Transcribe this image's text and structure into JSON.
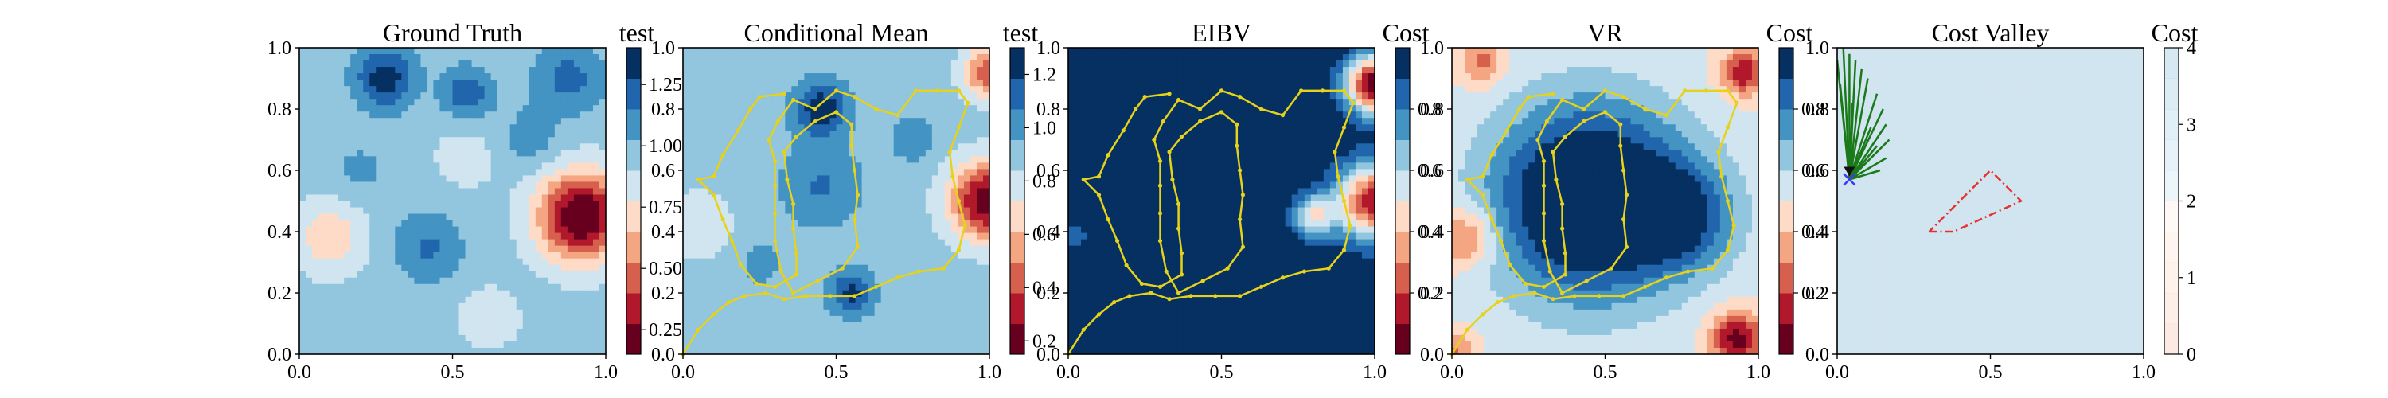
{
  "chart_data": [
    {
      "type": "heatmap",
      "title": "Ground Truth",
      "colorbar_label": "test",
      "xlim": [
        0,
        1
      ],
      "ylim": [
        0,
        1
      ],
      "x_ticks": [
        "0.0",
        "0.5",
        "1.0"
      ],
      "y_ticks": [
        "0.0",
        "0.2",
        "0.4",
        "0.6",
        "0.8",
        "1.0"
      ],
      "colorbar_range": [
        0.15,
        1.4
      ],
      "colorbar_ticks": [
        "0.25",
        "0.50",
        "0.75",
        "1.00",
        "1.25"
      ],
      "colorbar_tick_values": [
        0.25,
        0.5,
        0.75,
        1.0,
        1.25
      ],
      "colormap": "RdBu",
      "levels": 10,
      "field": {
        "base": 0.95,
        "blobs": [
          {
            "x": 0.92,
            "y": 0.45,
            "a": -0.85,
            "s": 0.1
          },
          {
            "x": 0.1,
            "y": 0.38,
            "a": -0.28,
            "s": 0.08
          },
          {
            "x": 0.62,
            "y": 0.12,
            "a": -0.15,
            "s": 0.07
          },
          {
            "x": 0.55,
            "y": 0.65,
            "a": -0.1,
            "s": 0.09
          },
          {
            "x": 0.28,
            "y": 0.9,
            "a": 0.4,
            "s": 0.07
          },
          {
            "x": 0.88,
            "y": 0.9,
            "a": 0.25,
            "s": 0.08
          },
          {
            "x": 0.42,
            "y": 0.35,
            "a": 0.22,
            "s": 0.08
          },
          {
            "x": 0.55,
            "y": 0.85,
            "a": 0.3,
            "s": 0.06
          },
          {
            "x": 0.75,
            "y": 0.7,
            "a": 0.15,
            "s": 0.07
          },
          {
            "x": 0.2,
            "y": 0.6,
            "a": 0.12,
            "s": 0.06
          }
        ]
      },
      "path": []
    },
    {
      "type": "heatmap",
      "title": "Conditional Mean",
      "colorbar_label": "test",
      "xlim": [
        0,
        1
      ],
      "ylim": [
        0,
        1
      ],
      "x_ticks": [
        "0.0",
        "0.5",
        "1.0"
      ],
      "y_ticks": [
        "0.0",
        "0.2",
        "0.4",
        "0.6",
        "0.8",
        "1.0"
      ],
      "colorbar_range": [
        0.15,
        1.3
      ],
      "colorbar_ticks": [
        "0.2",
        "0.4",
        "0.6",
        "0.8",
        "1.0",
        "1.2"
      ],
      "colorbar_tick_values": [
        0.2,
        0.4,
        0.6,
        0.8,
        1.0,
        1.2
      ],
      "colormap": "RdBu",
      "levels": 10,
      "field": {
        "base": 0.9,
        "blobs": [
          {
            "x": 1.0,
            "y": 0.5,
            "a": -0.75,
            "s": 0.09
          },
          {
            "x": 1.0,
            "y": 0.92,
            "a": -0.5,
            "s": 0.06
          },
          {
            "x": 0.05,
            "y": 0.42,
            "a": -0.12,
            "s": 0.1
          },
          {
            "x": 0.45,
            "y": 0.8,
            "a": 0.38,
            "s": 0.06
          },
          {
            "x": 0.55,
            "y": 0.2,
            "a": 0.32,
            "s": 0.05
          },
          {
            "x": 0.45,
            "y": 0.55,
            "a": 0.18,
            "s": 0.09
          },
          {
            "x": 0.75,
            "y": 0.7,
            "a": 0.15,
            "s": 0.05
          },
          {
            "x": 0.25,
            "y": 0.3,
            "a": 0.1,
            "s": 0.06
          }
        ]
      },
      "path": [
        [
          0.0,
          0.0
        ],
        [
          0.05,
          0.08
        ],
        [
          0.1,
          0.13
        ],
        [
          0.15,
          0.17
        ],
        [
          0.2,
          0.19
        ],
        [
          0.27,
          0.2
        ],
        [
          0.33,
          0.18
        ],
        [
          0.4,
          0.19
        ],
        [
          0.48,
          0.19
        ],
        [
          0.56,
          0.19
        ],
        [
          0.63,
          0.22
        ],
        [
          0.7,
          0.25
        ],
        [
          0.77,
          0.27
        ],
        [
          0.85,
          0.28
        ],
        [
          0.9,
          0.34
        ],
        [
          0.92,
          0.42
        ],
        [
          0.9,
          0.5
        ],
        [
          0.88,
          0.58
        ],
        [
          0.87,
          0.66
        ],
        [
          0.9,
          0.74
        ],
        [
          0.93,
          0.82
        ],
        [
          0.9,
          0.86
        ],
        [
          0.83,
          0.86
        ],
        [
          0.76,
          0.86
        ],
        [
          0.7,
          0.78
        ],
        [
          0.63,
          0.8
        ],
        [
          0.56,
          0.84
        ],
        [
          0.5,
          0.86
        ],
        [
          0.43,
          0.8
        ],
        [
          0.36,
          0.83
        ],
        [
          0.31,
          0.76
        ],
        [
          0.28,
          0.7
        ],
        [
          0.3,
          0.63
        ],
        [
          0.3,
          0.55
        ],
        [
          0.3,
          0.46
        ],
        [
          0.3,
          0.37
        ],
        [
          0.32,
          0.27
        ],
        [
          0.36,
          0.2
        ],
        [
          0.44,
          0.24
        ],
        [
          0.52,
          0.28
        ],
        [
          0.57,
          0.35
        ],
        [
          0.56,
          0.44
        ],
        [
          0.57,
          0.52
        ],
        [
          0.56,
          0.6
        ],
        [
          0.55,
          0.68
        ],
        [
          0.55,
          0.75
        ],
        [
          0.5,
          0.79
        ],
        [
          0.43,
          0.76
        ],
        [
          0.37,
          0.71
        ],
        [
          0.33,
          0.66
        ],
        [
          0.34,
          0.57
        ],
        [
          0.36,
          0.49
        ],
        [
          0.36,
          0.41
        ],
        [
          0.37,
          0.33
        ],
        [
          0.37,
          0.26
        ],
        [
          0.3,
          0.22
        ],
        [
          0.24,
          0.23
        ],
        [
          0.19,
          0.29
        ],
        [
          0.16,
          0.37
        ],
        [
          0.13,
          0.44
        ],
        [
          0.1,
          0.52
        ],
        [
          0.05,
          0.57
        ],
        [
          0.1,
          0.58
        ],
        [
          0.13,
          0.65
        ],
        [
          0.18,
          0.73
        ],
        [
          0.22,
          0.8
        ],
        [
          0.25,
          0.84
        ],
        [
          0.33,
          0.85
        ]
      ]
    },
    {
      "type": "heatmap",
      "title": "EIBV",
      "colorbar_label": "Cost",
      "xlim": [
        0,
        1
      ],
      "ylim": [
        0,
        1
      ],
      "x_ticks": [
        "0.0",
        "0.5",
        "1.0"
      ],
      "y_ticks": [
        "0.0",
        "0.2",
        "0.4",
        "0.6",
        "0.8",
        "1.0"
      ],
      "colorbar_range": [
        0.0,
        1.0
      ],
      "colorbar_ticks": [
        "0.2",
        "0.4",
        "0.6",
        "0.8"
      ],
      "colorbar_tick_values": [
        0.2,
        0.4,
        0.6,
        0.8
      ],
      "colormap": "RdBu",
      "levels": 10,
      "field": {
        "base": 1.02,
        "blobs": [
          {
            "x": 1.0,
            "y": 0.5,
            "a": -0.9,
            "s": 0.09
          },
          {
            "x": 1.0,
            "y": 0.88,
            "a": -1.0,
            "s": 0.07
          },
          {
            "x": 0.8,
            "y": 0.45,
            "a": -0.5,
            "s": 0.05
          },
          {
            "x": 0.02,
            "y": 0.38,
            "a": -0.15,
            "s": 0.05
          }
        ]
      },
      "path": [
        [
          0.0,
          0.0
        ],
        [
          0.05,
          0.08
        ],
        [
          0.1,
          0.13
        ],
        [
          0.15,
          0.17
        ],
        [
          0.2,
          0.19
        ],
        [
          0.27,
          0.2
        ],
        [
          0.33,
          0.18
        ],
        [
          0.4,
          0.19
        ],
        [
          0.48,
          0.19
        ],
        [
          0.56,
          0.19
        ],
        [
          0.63,
          0.22
        ],
        [
          0.7,
          0.25
        ],
        [
          0.77,
          0.27
        ],
        [
          0.85,
          0.28
        ],
        [
          0.9,
          0.34
        ],
        [
          0.92,
          0.42
        ],
        [
          0.9,
          0.5
        ],
        [
          0.88,
          0.58
        ],
        [
          0.87,
          0.66
        ],
        [
          0.9,
          0.74
        ],
        [
          0.93,
          0.82
        ],
        [
          0.9,
          0.86
        ],
        [
          0.83,
          0.86
        ],
        [
          0.76,
          0.86
        ],
        [
          0.7,
          0.78
        ],
        [
          0.63,
          0.8
        ],
        [
          0.56,
          0.84
        ],
        [
          0.5,
          0.86
        ],
        [
          0.43,
          0.8
        ],
        [
          0.36,
          0.83
        ],
        [
          0.31,
          0.76
        ],
        [
          0.28,
          0.7
        ],
        [
          0.3,
          0.63
        ],
        [
          0.3,
          0.55
        ],
        [
          0.3,
          0.46
        ],
        [
          0.3,
          0.37
        ],
        [
          0.32,
          0.27
        ],
        [
          0.36,
          0.2
        ],
        [
          0.44,
          0.24
        ],
        [
          0.52,
          0.28
        ],
        [
          0.57,
          0.35
        ],
        [
          0.56,
          0.44
        ],
        [
          0.57,
          0.52
        ],
        [
          0.56,
          0.6
        ],
        [
          0.55,
          0.68
        ],
        [
          0.55,
          0.75
        ],
        [
          0.5,
          0.79
        ],
        [
          0.43,
          0.76
        ],
        [
          0.37,
          0.71
        ],
        [
          0.33,
          0.66
        ],
        [
          0.34,
          0.57
        ],
        [
          0.36,
          0.49
        ],
        [
          0.36,
          0.41
        ],
        [
          0.37,
          0.33
        ],
        [
          0.37,
          0.26
        ],
        [
          0.3,
          0.22
        ],
        [
          0.24,
          0.23
        ],
        [
          0.19,
          0.29
        ],
        [
          0.16,
          0.37
        ],
        [
          0.13,
          0.44
        ],
        [
          0.1,
          0.52
        ],
        [
          0.05,
          0.57
        ],
        [
          0.1,
          0.58
        ],
        [
          0.13,
          0.65
        ],
        [
          0.18,
          0.73
        ],
        [
          0.22,
          0.8
        ],
        [
          0.25,
          0.84
        ],
        [
          0.33,
          0.85
        ]
      ]
    },
    {
      "type": "heatmap",
      "title": "VR",
      "colorbar_label": "Cost",
      "xlim": [
        0,
        1
      ],
      "ylim": [
        0,
        1
      ],
      "x_ticks": [
        "0.0",
        "0.5",
        "1.0"
      ],
      "y_ticks": [
        "0.0",
        "0.2",
        "0.4",
        "0.6",
        "0.8",
        "1.0"
      ],
      "colorbar_range": [
        0.0,
        1.0
      ],
      "colorbar_ticks": [
        "0.2",
        "0.4",
        "0.6",
        "0.8"
      ],
      "colorbar_tick_values": [
        0.2,
        0.4,
        0.6,
        0.8
      ],
      "colormap": "RdBu",
      "levels": 10,
      "field": {
        "base": 0.5,
        "blobs": [
          {
            "x": 0.45,
            "y": 0.5,
            "a": 0.7,
            "s": 0.22
          },
          {
            "x": 0.75,
            "y": 0.45,
            "a": 0.35,
            "s": 0.12
          },
          {
            "x": 0.05,
            "y": 0.38,
            "a": -0.28,
            "s": 0.07
          },
          {
            "x": 0.93,
            "y": 0.05,
            "a": -0.45,
            "s": 0.06
          },
          {
            "x": 0.95,
            "y": 0.92,
            "a": -0.4,
            "s": 0.05
          },
          {
            "x": 0.1,
            "y": 0.95,
            "a": -0.25,
            "s": 0.05
          },
          {
            "x": 0.0,
            "y": 0.0,
            "a": -0.25,
            "s": 0.05
          }
        ]
      },
      "path": [
        [
          0.0,
          0.0
        ],
        [
          0.05,
          0.08
        ],
        [
          0.1,
          0.13
        ],
        [
          0.15,
          0.17
        ],
        [
          0.2,
          0.19
        ],
        [
          0.27,
          0.2
        ],
        [
          0.33,
          0.18
        ],
        [
          0.4,
          0.19
        ],
        [
          0.48,
          0.19
        ],
        [
          0.56,
          0.19
        ],
        [
          0.63,
          0.22
        ],
        [
          0.7,
          0.25
        ],
        [
          0.77,
          0.27
        ],
        [
          0.85,
          0.28
        ],
        [
          0.9,
          0.34
        ],
        [
          0.92,
          0.42
        ],
        [
          0.9,
          0.5
        ],
        [
          0.88,
          0.58
        ],
        [
          0.87,
          0.66
        ],
        [
          0.9,
          0.74
        ],
        [
          0.93,
          0.82
        ],
        [
          0.9,
          0.86
        ],
        [
          0.83,
          0.86
        ],
        [
          0.76,
          0.86
        ],
        [
          0.7,
          0.78
        ],
        [
          0.63,
          0.8
        ],
        [
          0.56,
          0.84
        ],
        [
          0.5,
          0.86
        ],
        [
          0.43,
          0.8
        ],
        [
          0.36,
          0.83
        ],
        [
          0.31,
          0.76
        ],
        [
          0.28,
          0.7
        ],
        [
          0.3,
          0.63
        ],
        [
          0.3,
          0.55
        ],
        [
          0.3,
          0.46
        ],
        [
          0.3,
          0.37
        ],
        [
          0.32,
          0.27
        ],
        [
          0.36,
          0.2
        ],
        [
          0.44,
          0.24
        ],
        [
          0.52,
          0.28
        ],
        [
          0.57,
          0.35
        ],
        [
          0.56,
          0.44
        ],
        [
          0.57,
          0.52
        ],
        [
          0.56,
          0.6
        ],
        [
          0.55,
          0.68
        ],
        [
          0.55,
          0.75
        ],
        [
          0.5,
          0.79
        ],
        [
          0.43,
          0.76
        ],
        [
          0.37,
          0.71
        ],
        [
          0.33,
          0.66
        ],
        [
          0.34,
          0.57
        ],
        [
          0.36,
          0.49
        ],
        [
          0.36,
          0.41
        ],
        [
          0.37,
          0.33
        ],
        [
          0.37,
          0.26
        ],
        [
          0.3,
          0.22
        ],
        [
          0.24,
          0.23
        ],
        [
          0.19,
          0.29
        ],
        [
          0.16,
          0.37
        ],
        [
          0.13,
          0.44
        ],
        [
          0.1,
          0.52
        ],
        [
          0.05,
          0.57
        ],
        [
          0.1,
          0.58
        ],
        [
          0.13,
          0.65
        ],
        [
          0.18,
          0.73
        ],
        [
          0.22,
          0.8
        ],
        [
          0.25,
          0.84
        ],
        [
          0.33,
          0.85
        ]
      ]
    },
    {
      "type": "heatmap",
      "title": "Cost Valley",
      "colorbar_label": "Cost",
      "xlim": [
        0,
        1
      ],
      "ylim": [
        0,
        1
      ],
      "x_ticks": [
        "0.0",
        "0.5",
        "1.0"
      ],
      "y_ticks": [
        "0.0",
        "0.2",
        "0.4",
        "0.6",
        "0.8",
        "1.0"
      ],
      "colorbar_range": [
        0,
        4
      ],
      "colorbar_ticks": [
        "0",
        "1",
        "2",
        "3",
        "4"
      ],
      "colorbar_tick_values": [
        0,
        1,
        2,
        3,
        4
      ],
      "colormap": "RdBu",
      "levels": 10,
      "field": {
        "base": 2.05,
        "blobs": []
      },
      "polygon": [
        [
          0.3,
          0.4
        ],
        [
          0.38,
          0.4
        ],
        [
          0.6,
          0.5
        ],
        [
          0.5,
          0.6
        ],
        [
          0.3,
          0.4
        ]
      ],
      "polygon_color": "#e8312c",
      "agent_point": [
        0.04,
        0.57
      ],
      "agent_marker": "x",
      "agent_color": "#3b3bf5",
      "candidate_directions": [
        [
          0.02,
          1.0
        ],
        [
          0.04,
          0.98
        ],
        [
          0.06,
          0.96
        ],
        [
          0.08,
          0.93
        ],
        [
          0.1,
          0.9
        ],
        [
          0.13,
          0.85
        ],
        [
          0.15,
          0.8
        ],
        [
          0.16,
          0.75
        ],
        [
          0.17,
          0.7
        ],
        [
          0.16,
          0.64
        ],
        [
          0.14,
          0.6
        ],
        [
          0.0,
          0.96
        ],
        [
          0.01,
          0.88
        ],
        [
          0.05,
          0.82
        ],
        [
          0.11,
          0.74
        ],
        [
          0.13,
          0.68
        ]
      ],
      "candidate_color": "#1a7a1a",
      "path": []
    }
  ]
}
